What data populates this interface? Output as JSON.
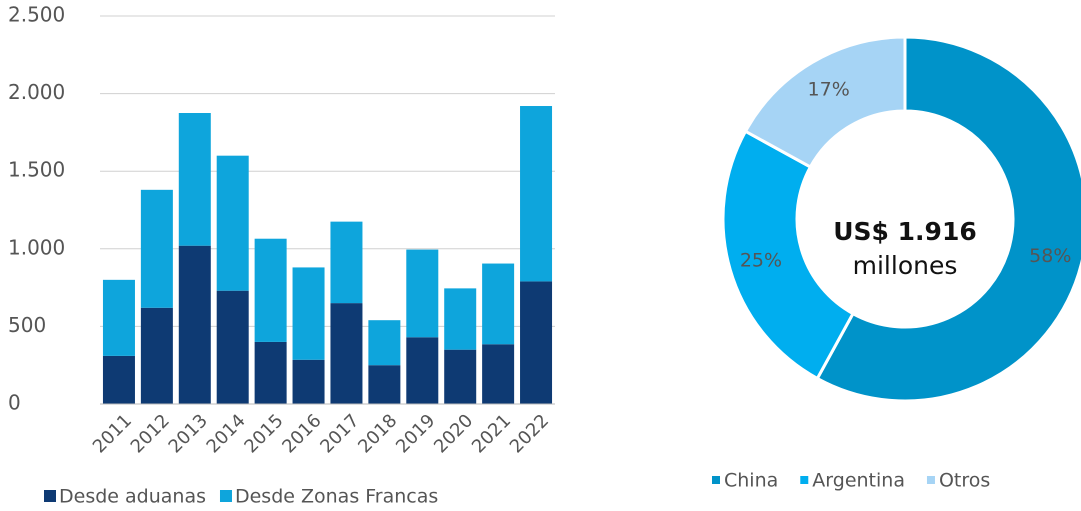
{
  "chart_data": [
    {
      "type": "bar",
      "stacked": true,
      "categories": [
        "2011",
        "2012",
        "2013",
        "2014",
        "2015",
        "2016",
        "2017",
        "2018",
        "2019",
        "2020",
        "2021",
        "2022"
      ],
      "series": [
        {
          "name": "Desde aduanas",
          "color": "#0e3a73",
          "values": [
            310,
            620,
            1020,
            730,
            400,
            285,
            650,
            250,
            430,
            350,
            385,
            790
          ]
        },
        {
          "name": "Desde Zonas Francas",
          "color": "#0ea5dc",
          "values": [
            490,
            760,
            855,
            870,
            665,
            595,
            525,
            290,
            565,
            395,
            520,
            1130
          ]
        }
      ],
      "ylim": [
        0,
        2500
      ],
      "yticks": [
        0,
        500,
        {
          "value": 1000,
          "label": "1.000"
        },
        {
          "value": 1500,
          "label": "1.500"
        },
        {
          "value": 2000,
          "label": "2.000"
        },
        {
          "value": 2500,
          "label": "2.500"
        }
      ],
      "grid": true,
      "legend": "bottom"
    },
    {
      "type": "pie",
      "donut": true,
      "categories": [
        "China",
        "Argentina",
        "Otros"
      ],
      "values": [
        58,
        25,
        17
      ],
      "value_labels": [
        "58%",
        "25%",
        "17%"
      ],
      "colors": [
        "#0093c9",
        "#00aeef",
        "#a6d4f5"
      ],
      "annotations": [
        "US$ 1.916",
        "millones"
      ],
      "legend": "bottom"
    }
  ]
}
